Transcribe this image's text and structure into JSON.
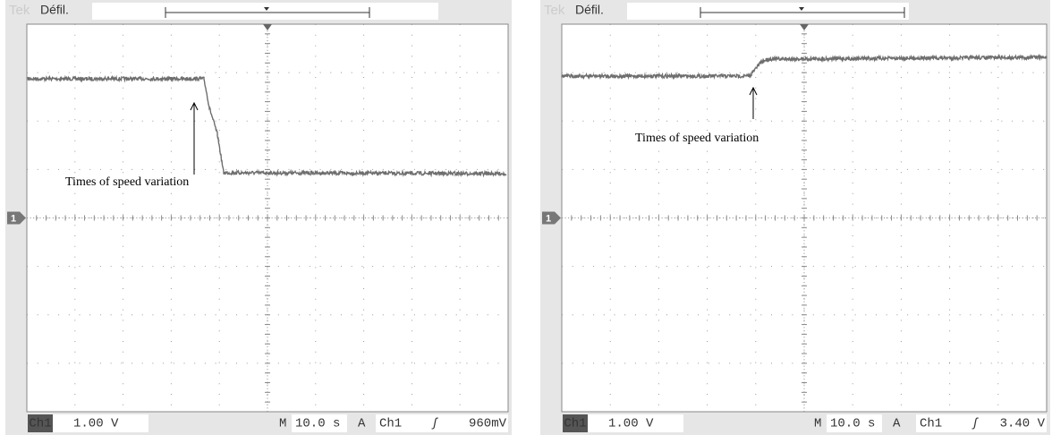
{
  "panels": [
    {
      "brand": "Tek",
      "mode": "Défil.",
      "marker": "1",
      "annotation": "Times of speed variation",
      "channel": "Ch1",
      "scale": "1.00 V",
      "time_label": "M",
      "time_scale": "10.0 s",
      "trigger_label": "A",
      "trigger_source": "Ch1",
      "trigger_slope": "ʃ",
      "trigger_level": "960mV"
    },
    {
      "brand": "Tek",
      "mode": "Défil.",
      "marker": "1",
      "annotation": "Times of speed variation",
      "channel": "Ch1",
      "scale": "1.00 V",
      "time_label": "M",
      "time_scale": "10.0 s",
      "trigger_label": "A",
      "trigger_source": "Ch1",
      "trigger_slope": "ʃ",
      "trigger_level": "3.40 V"
    }
  ]
}
